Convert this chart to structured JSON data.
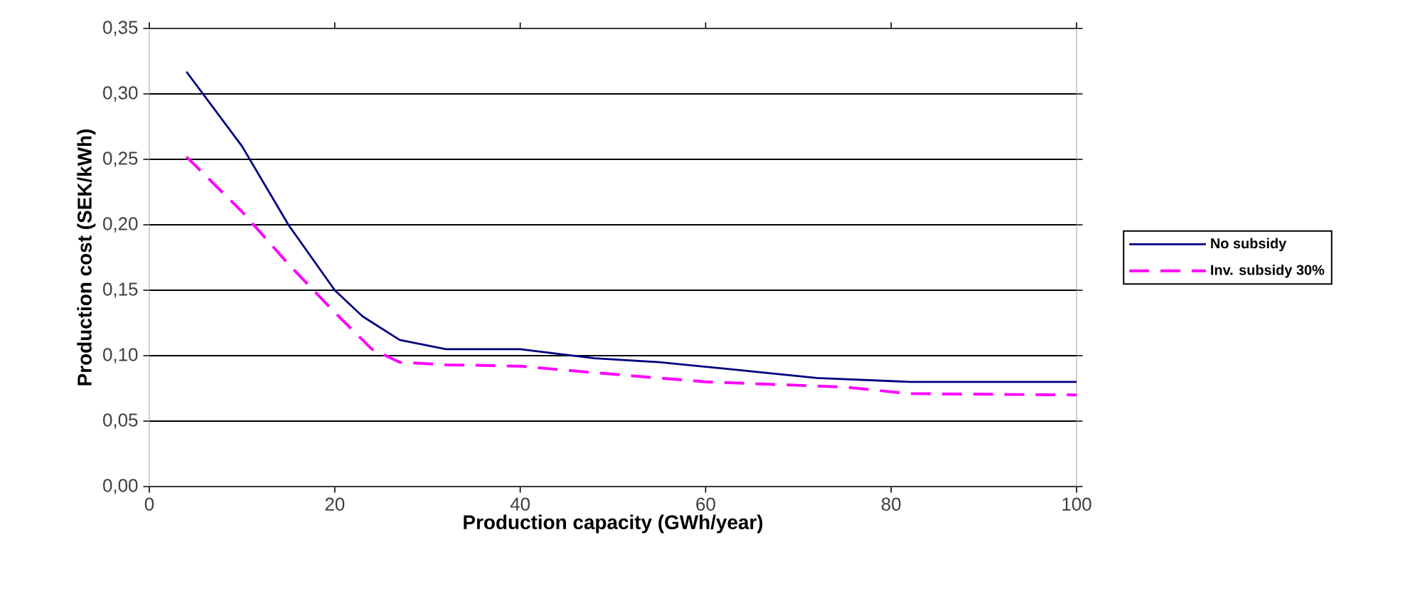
{
  "chart_data": {
    "type": "line",
    "xlabel": "Production capacity (GWh/year)",
    "ylabel": "Production cost (SEK/kWh)",
    "xlim": [
      0,
      100
    ],
    "xticks": [
      0,
      20,
      40,
      60,
      80,
      100
    ],
    "ylim": [
      0,
      0.35
    ],
    "yticks": [
      {
        "value": 0,
        "label": "0,00"
      },
      {
        "value": 0.05,
        "label": "0,05"
      },
      {
        "value": 0.1,
        "label": "0,10"
      },
      {
        "value": 0.15,
        "label": "0,15"
      },
      {
        "value": 0.2,
        "label": "0,20"
      },
      {
        "value": 0.25,
        "label": "0,25"
      },
      {
        "value": 0.3,
        "label": "0,30"
      },
      {
        "value": 0.35,
        "label": "0,35"
      }
    ],
    "grid": "y",
    "legend": "right",
    "marker": "none",
    "series": [
      {
        "name": "No subsidy",
        "color": "#000080",
        "line_style": "solid",
        "x": [
          4,
          10,
          15,
          20,
          23,
          27,
          32,
          40,
          48,
          55,
          65,
          72,
          82,
          100
        ],
        "values": [
          0.317,
          0.26,
          0.2,
          0.15,
          0.13,
          0.112,
          0.105,
          0.105,
          0.098,
          0.095,
          0.088,
          0.083,
          0.08,
          0.08
        ]
      },
      {
        "name": "Inv. subsidy 30%",
        "color": "#ff00ff",
        "line_style": "dashed",
        "x": [
          4,
          10,
          15,
          20,
          24,
          27,
          32,
          40,
          48,
          60,
          75,
          82,
          100
        ],
        "values": [
          0.252,
          0.21,
          0.17,
          0.133,
          0.105,
          0.095,
          0.093,
          0.092,
          0.087,
          0.08,
          0.076,
          0.071,
          0.07
        ]
      }
    ]
  }
}
